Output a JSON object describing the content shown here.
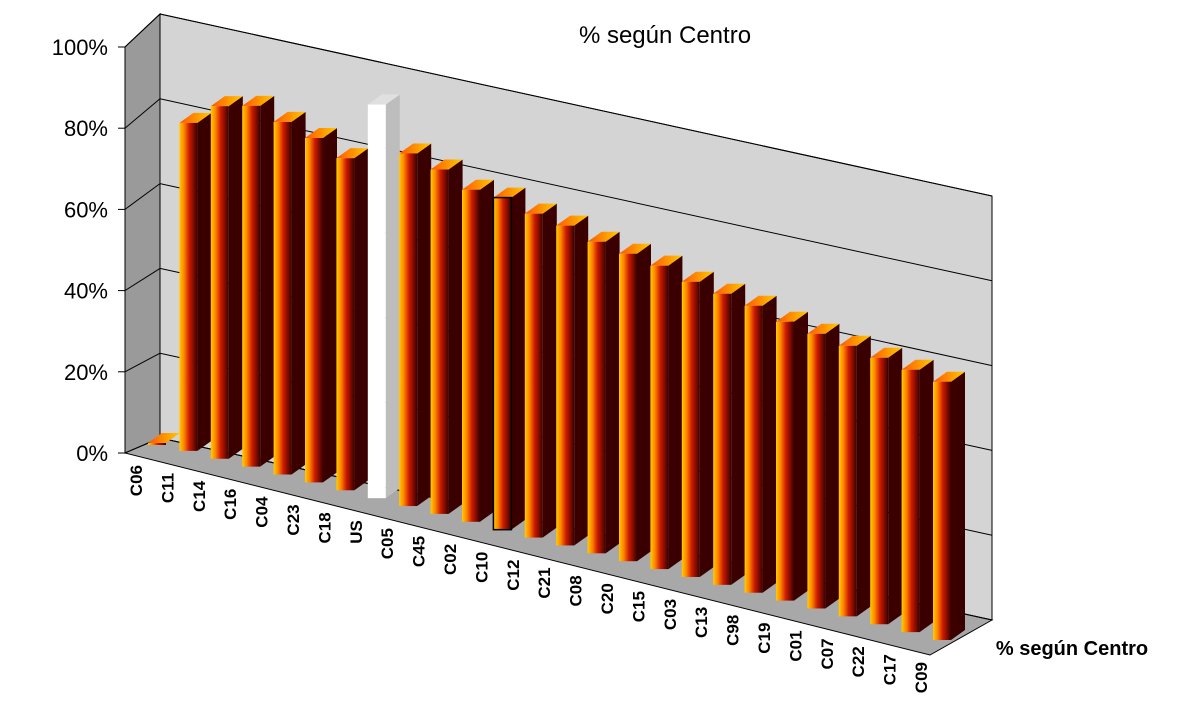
{
  "chart_data": {
    "type": "bar",
    "title": "% según Centro",
    "xlabel": "",
    "ylabel": "",
    "ylim": [
      0,
      100
    ],
    "yticks": [
      "0%",
      "20%",
      "40%",
      "60%",
      "80%",
      "100%"
    ],
    "categories": [
      "C06",
      "C11",
      "C14",
      "C16",
      "C04",
      "C23",
      "C18",
      "US",
      "C05",
      "C45",
      "C02",
      "C10",
      "C12",
      "C21",
      "C08",
      "C20",
      "C15",
      "C03",
      "C13",
      "C98",
      "C19",
      "C01",
      "C07",
      "C22",
      "C17",
      "C09"
    ],
    "series": [
      {
        "name": "% según Centro",
        "values": [
          0,
          80,
          86,
          88,
          86,
          84,
          81,
          96,
          86,
          84,
          81,
          81,
          79,
          78,
          76,
          75,
          74,
          72,
          71,
          70,
          68,
          67,
          66,
          65,
          64,
          63
        ]
      }
    ],
    "highlight": {
      "US": "white",
      "C10": "outlined"
    },
    "grid": true,
    "legend": "right",
    "colors": {
      "bar_dark": "#3a0000",
      "bar_mid": "#cc1a00",
      "bar_light": "#ffcc00",
      "wall": "#c0c0c0",
      "floor": "#a8a8a8"
    }
  }
}
